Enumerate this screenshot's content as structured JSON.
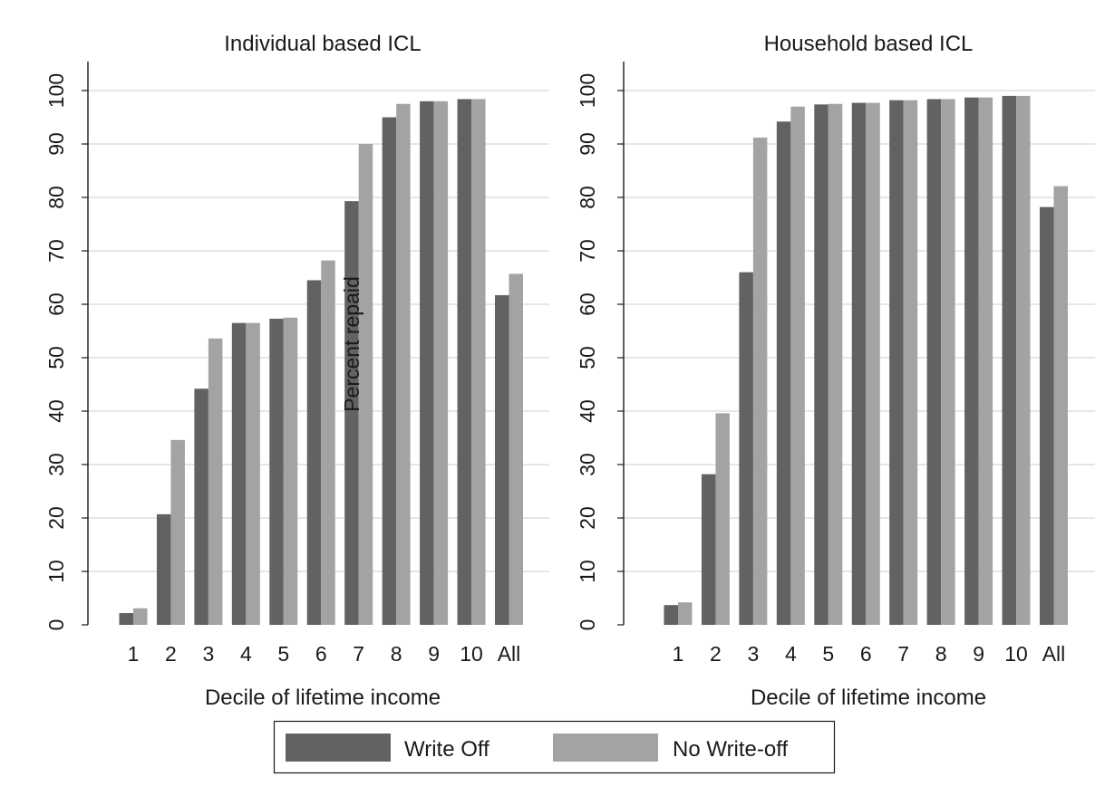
{
  "chart_data": {
    "type": "bar",
    "ylabel": "Percent repaid",
    "ylim": [
      0,
      100
    ],
    "yticks": [
      "0",
      "10",
      "20",
      "30",
      "40",
      "50",
      "60",
      "70",
      "80",
      "90",
      "100"
    ],
    "grid": true,
    "legend_position": "bottom-center",
    "legend": [
      {
        "name": "Write Off",
        "color": "#626262"
      },
      {
        "name": "No Write-off",
        "color": "#a3a3a3"
      }
    ],
    "panels": [
      {
        "title": "Individual based ICL",
        "xlabel": "Decile of lifetime income",
        "categories": [
          "1",
          "2",
          "3",
          "4",
          "5",
          "6",
          "7",
          "8",
          "9",
          "10",
          "All"
        ],
        "series": [
          {
            "name": "Write Off",
            "values": [
              2.2,
              20.7,
              44.2,
              56.5,
              57.3,
              64.5,
              79.3,
              95.0,
              98.0,
              98.4,
              61.7
            ]
          },
          {
            "name": "No Write-off",
            "values": [
              3.1,
              34.6,
              53.6,
              56.5,
              57.5,
              68.2,
              90.0,
              97.5,
              98.0,
              98.4,
              65.7
            ]
          }
        ]
      },
      {
        "title": "Household based ICL",
        "xlabel": "Decile of lifetime income",
        "categories": [
          "1",
          "2",
          "3",
          "4",
          "5",
          "6",
          "7",
          "8",
          "9",
          "10",
          "All"
        ],
        "series": [
          {
            "name": "Write Off",
            "values": [
              3.7,
              28.2,
              66.0,
              94.2,
              97.4,
              97.7,
              98.2,
              98.4,
              98.7,
              99.0,
              78.2
            ]
          },
          {
            "name": "No Write-off",
            "values": [
              4.2,
              39.6,
              91.2,
              97.0,
              97.5,
              97.7,
              98.2,
              98.4,
              98.7,
              99.0,
              82.1
            ]
          }
        ]
      }
    ]
  }
}
